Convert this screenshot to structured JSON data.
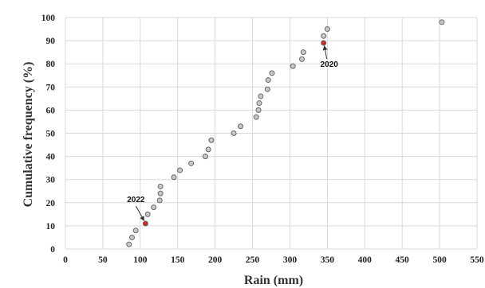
{
  "chart_data": {
    "type": "scatter",
    "title": "",
    "xlabel": "Rain (mm)",
    "ylabel": "Cumulative frequency (%)",
    "xlim": [
      0,
      550
    ],
    "ylim": [
      0,
      100
    ],
    "x_ticks": [
      "0",
      "50",
      "100",
      "150",
      "200",
      "250",
      "300",
      "350",
      "400",
      "450",
      "500",
      "550"
    ],
    "y_ticks": [
      "0",
      "10",
      "20",
      "30",
      "40",
      "50",
      "60",
      "70",
      "80",
      "90",
      "100"
    ],
    "grid": true,
    "legend": "none",
    "marker_color": "#c8c8c8",
    "highlight_color": "#d62728",
    "series": [
      {
        "points": [
          {
            "x": 85,
            "y": 2
          },
          {
            "x": 89,
            "y": 5
          },
          {
            "x": 94,
            "y": 8
          },
          {
            "x": 107,
            "y": 11,
            "highlight": true
          },
          {
            "x": 110,
            "y": 15
          },
          {
            "x": 118,
            "y": 18
          },
          {
            "x": 126,
            "y": 21
          },
          {
            "x": 127,
            "y": 24
          },
          {
            "x": 127,
            "y": 27
          },
          {
            "x": 145,
            "y": 31
          },
          {
            "x": 153,
            "y": 34
          },
          {
            "x": 168,
            "y": 37
          },
          {
            "x": 187,
            "y": 40
          },
          {
            "x": 191,
            "y": 43
          },
          {
            "x": 195,
            "y": 47
          },
          {
            "x": 225,
            "y": 50
          },
          {
            "x": 234,
            "y": 53
          },
          {
            "x": 255,
            "y": 57
          },
          {
            "x": 258,
            "y": 60
          },
          {
            "x": 259,
            "y": 63
          },
          {
            "x": 261,
            "y": 66
          },
          {
            "x": 270,
            "y": 69
          },
          {
            "x": 271,
            "y": 73
          },
          {
            "x": 276,
            "y": 76
          },
          {
            "x": 304,
            "y": 79
          },
          {
            "x": 316,
            "y": 82
          },
          {
            "x": 318,
            "y": 85
          },
          {
            "x": 345,
            "y": 89,
            "highlight": true
          },
          {
            "x": 345,
            "y": 92
          },
          {
            "x": 350,
            "y": 95
          },
          {
            "x": 503,
            "y": 98
          }
        ]
      }
    ],
    "annotations": [
      {
        "text": "2022",
        "x": 107,
        "y": 11
      },
      {
        "text": "2020",
        "x": 345,
        "y": 89
      }
    ]
  }
}
